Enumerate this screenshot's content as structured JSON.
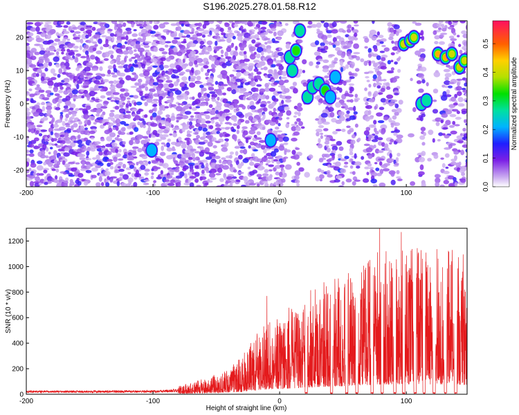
{
  "title": "S196.2025.278.01.58.R12",
  "chart_data": [
    {
      "type": "heatmap",
      "xlabel": "Height of straight line (km)",
      "ylabel": "Frequency (Hz)",
      "xlim": [
        -200,
        148
      ],
      "ylim": [
        -25,
        25
      ],
      "xticks": [
        -200,
        -100,
        0,
        100
      ],
      "yticks": [
        -20,
        -10,
        0,
        10,
        20
      ],
      "colorbar": {
        "label": "Normalized spectral amplitude",
        "range": [
          0,
          0.58
        ],
        "ticks": [
          0.0,
          0.1,
          0.2,
          0.3,
          0.4,
          0.5
        ]
      },
      "blank_regions_km": [
        [
          5,
          8
        ],
        [
          15,
          28
        ],
        [
          60,
          66
        ],
        [
          95,
          108
        ],
        [
          114,
          120
        ]
      ],
      "strong_features": [
        {
          "x": -101,
          "y": -14,
          "amplitude": 0.22
        },
        {
          "x": -7,
          "y": -11,
          "amplitude": 0.22
        },
        {
          "x": 8,
          "y": 14,
          "amplitude": 0.3
        },
        {
          "x": 10,
          "y": 10,
          "amplitude": 0.3
        },
        {
          "x": 13,
          "y": 16,
          "amplitude": 0.35
        },
        {
          "x": 16,
          "y": 22,
          "amplitude": 0.3
        },
        {
          "x": 22,
          "y": 2,
          "amplitude": 0.3
        },
        {
          "x": 26,
          "y": 5,
          "amplitude": 0.3
        },
        {
          "x": 31,
          "y": 6,
          "amplitude": 0.3
        },
        {
          "x": 36,
          "y": 4,
          "amplitude": 0.35
        },
        {
          "x": 40,
          "y": 2,
          "amplitude": 0.25
        },
        {
          "x": 44,
          "y": 8,
          "amplitude": 0.25
        },
        {
          "x": 98,
          "y": 18,
          "amplitude": 0.45
        },
        {
          "x": 103,
          "y": 19,
          "amplitude": 0.45
        },
        {
          "x": 106,
          "y": 20,
          "amplitude": 0.42
        },
        {
          "x": 112,
          "y": 0,
          "amplitude": 0.3
        },
        {
          "x": 116,
          "y": 1,
          "amplitude": 0.3
        },
        {
          "x": 125,
          "y": 15,
          "amplitude": 0.48
        },
        {
          "x": 131,
          "y": 14,
          "amplitude": 0.5
        },
        {
          "x": 136,
          "y": 15,
          "amplitude": 0.42
        },
        {
          "x": 142,
          "y": 11,
          "amplitude": 0.45
        },
        {
          "x": 146,
          "y": 13,
          "amplitude": 0.4
        }
      ]
    },
    {
      "type": "line",
      "xlabel": "Height of straight line (km)",
      "ylabel": "SNR (10 * v/v)",
      "xlim": [
        -200,
        148
      ],
      "ylim": [
        0,
        1300
      ],
      "xticks": [
        -200,
        -100,
        0,
        100
      ],
      "yticks": [
        0,
        200,
        400,
        600,
        800,
        1000,
        1200
      ],
      "color": "#e41a1c",
      "envelope": {
        "x": [
          -200,
          -150,
          -100,
          -80,
          -60,
          -50,
          -40,
          -30,
          -20,
          -10,
          0,
          10,
          20,
          30,
          40,
          50,
          60,
          70,
          80,
          90,
          100,
          110,
          120,
          130,
          140,
          148
        ],
        "y": [
          20,
          20,
          22,
          28,
          55,
          70,
          90,
          130,
          200,
          260,
          280,
          310,
          350,
          380,
          400,
          420,
          450,
          480,
          500,
          500,
          520,
          520,
          520,
          510,
          500,
          480
        ]
      },
      "peaks": [
        {
          "x": -10,
          "y": 770
        },
        {
          "x": 20,
          "y": 700
        },
        {
          "x": 40,
          "y": 780
        },
        {
          "x": 56,
          "y": 890
        },
        {
          "x": 64,
          "y": 780
        },
        {
          "x": 71,
          "y": 1000
        },
        {
          "x": 79,
          "y": 1300
        },
        {
          "x": 84,
          "y": 1120
        },
        {
          "x": 96,
          "y": 1270
        },
        {
          "x": 104,
          "y": 800
        },
        {
          "x": 116,
          "y": 960
        },
        {
          "x": 126,
          "y": 800
        },
        {
          "x": 134,
          "y": 720
        },
        {
          "x": 146,
          "y": 820
        }
      ],
      "dropouts_km": [
        [
          20,
          22
        ],
        [
          40,
          42
        ],
        [
          52,
          54
        ],
        [
          60,
          62
        ],
        [
          72,
          74
        ],
        [
          80,
          82
        ],
        [
          90,
          92
        ],
        [
          97,
          99
        ],
        [
          106,
          108
        ],
        [
          113,
          115
        ],
        [
          121,
          123
        ],
        [
          130,
          132
        ],
        [
          138,
          140
        ]
      ]
    }
  ]
}
